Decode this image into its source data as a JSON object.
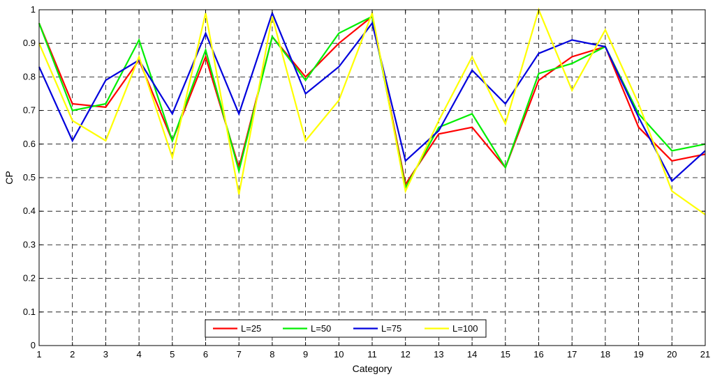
{
  "chart_data": {
    "type": "line",
    "title": "",
    "xlabel": "Category",
    "ylabel": "CP",
    "xlim": [
      1,
      21
    ],
    "ylim": [
      0,
      1
    ],
    "grid": true,
    "legend_position": "bottom-center",
    "x": [
      1,
      2,
      3,
      4,
      5,
      6,
      7,
      8,
      9,
      10,
      11,
      12,
      13,
      14,
      15,
      16,
      17,
      18,
      19,
      20,
      21
    ],
    "x_ticks": [
      "1",
      "2",
      "3",
      "4",
      "5",
      "6",
      "7",
      "8",
      "9",
      "10",
      "11",
      "12",
      "13",
      "14",
      "15",
      "16",
      "17",
      "18",
      "19",
      "20",
      "21"
    ],
    "y_ticks": [
      "0",
      "0.1",
      "0.2",
      "0.3",
      "0.4",
      "0.5",
      "0.6",
      "0.7",
      "0.8",
      "0.9",
      "1"
    ],
    "series": [
      {
        "name": "L=25",
        "color": "#ff0000",
        "values": [
          0.96,
          0.72,
          0.71,
          0.85,
          0.61,
          0.86,
          0.53,
          0.92,
          0.8,
          0.9,
          0.98,
          0.48,
          0.63,
          0.65,
          0.53,
          0.79,
          0.86,
          0.89,
          0.65,
          0.55,
          0.57
        ]
      },
      {
        "name": "L=50",
        "color": "#00ee00",
        "values": [
          0.96,
          0.7,
          0.72,
          0.91,
          0.61,
          0.88,
          0.52,
          0.92,
          0.79,
          0.93,
          0.98,
          0.47,
          0.65,
          0.69,
          0.53,
          0.81,
          0.84,
          0.89,
          0.69,
          0.58,
          0.6
        ]
      },
      {
        "name": "L=75",
        "color": "#0000dd",
        "values": [
          0.83,
          0.61,
          0.79,
          0.85,
          0.69,
          0.93,
          0.69,
          0.99,
          0.75,
          0.83,
          0.96,
          0.55,
          0.64,
          0.82,
          0.72,
          0.87,
          0.91,
          0.89,
          0.68,
          0.49,
          0.58
        ]
      },
      {
        "name": "L=100",
        "color": "#ffff00",
        "values": [
          0.9,
          0.67,
          0.61,
          0.86,
          0.56,
          0.99,
          0.45,
          0.98,
          0.61,
          0.73,
          0.99,
          0.46,
          0.67,
          0.86,
          0.66,
          1.0,
          0.76,
          0.94,
          0.72,
          0.46,
          0.39
        ]
      }
    ]
  }
}
